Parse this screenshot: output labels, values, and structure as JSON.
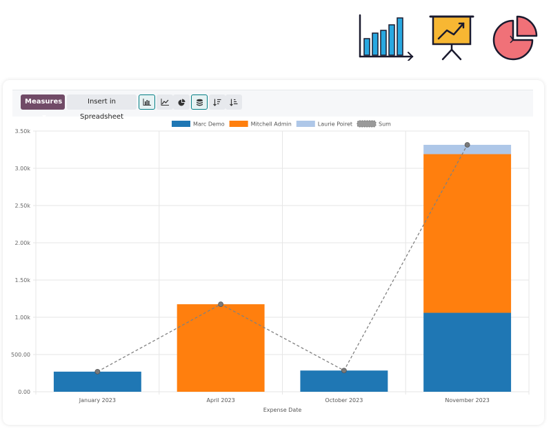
{
  "toolbar": {
    "measures_label": "Measures",
    "spreadsheet_label": "Insert in Spreadsheet",
    "icons": [
      "bar-chart-icon",
      "line-chart-icon",
      "pie-chart-icon",
      "stacked-icon",
      "sort-descending-icon",
      "sort-ascending-icon"
    ]
  },
  "colors": {
    "marc": "#1f77b4",
    "mitchell": "#ff7f0e",
    "laurie": "#aec7e8",
    "sum": "#808080",
    "accent": "#714b67"
  },
  "chart_data": {
    "type": "bar",
    "stacked": true,
    "categories": [
      "January 2023",
      "April 2023",
      "October 2023",
      "November 2023"
    ],
    "series": [
      {
        "name": "Marc Demo",
        "values": [
          270,
          0,
          285,
          1060
        ]
      },
      {
        "name": "Mitchell Admin",
        "values": [
          0,
          1175,
          0,
          2130
        ]
      },
      {
        "name": "Laurie Poiret",
        "values": [
          0,
          0,
          0,
          125
        ]
      }
    ],
    "sum_line": {
      "name": "Sum",
      "values": [
        270,
        1175,
        285,
        3315
      ]
    },
    "xlabel": "Expense Date",
    "ylabel": "",
    "ylim": [
      0,
      3500
    ],
    "yticks": [
      "0.00",
      "500.00",
      "1.00k",
      "1.50k",
      "2.00k",
      "2.50k",
      "3.00k",
      "3.50k"
    ],
    "grid": true,
    "legend": "top-center"
  }
}
